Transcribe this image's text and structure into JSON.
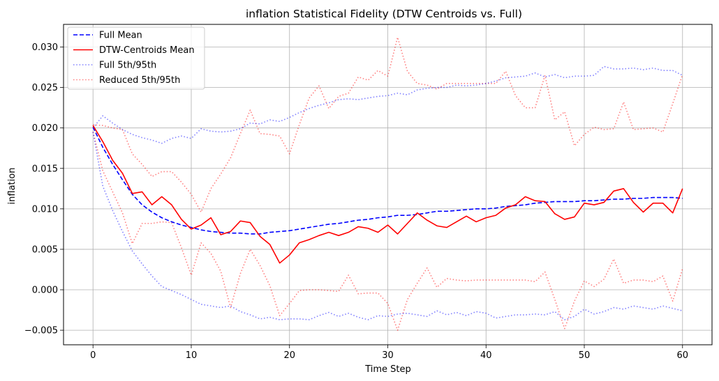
{
  "chart_data": {
    "type": "line",
    "title": "inflation Statistical Fidelity (DTW Centroids vs. Full)",
    "xlabel": "Time Step",
    "ylabel": "inflation",
    "xlim": [
      -3,
      63
    ],
    "ylim": [
      -0.0068,
      0.0328
    ],
    "xticks": [
      0,
      10,
      20,
      30,
      40,
      50,
      60
    ],
    "xtick_labels": [
      "0",
      "10",
      "20",
      "30",
      "40",
      "50",
      "60"
    ],
    "yticks": [
      -0.005,
      0.0,
      0.005,
      0.01,
      0.015,
      0.02,
      0.025,
      0.03
    ],
    "ytick_labels": [
      "−0.005",
      "0.000",
      "0.005",
      "0.010",
      "0.015",
      "0.020",
      "0.025",
      "0.030"
    ],
    "grid": true,
    "legend_position": "upper-left",
    "series": [
      {
        "name": "Full Mean",
        "color": "#0000ff",
        "style": "dashed",
        "alpha": 1.0,
        "x": [
          0,
          1,
          2,
          3,
          4,
          5,
          6,
          7,
          8,
          9,
          10,
          11,
          12,
          13,
          14,
          15,
          16,
          17,
          18,
          19,
          20,
          21,
          22,
          23,
          24,
          25,
          26,
          27,
          28,
          29,
          30,
          31,
          32,
          33,
          34,
          35,
          36,
          37,
          38,
          39,
          40,
          41,
          42,
          43,
          44,
          45,
          46,
          47,
          48,
          49,
          50,
          51,
          52,
          53,
          54,
          55,
          56,
          57,
          58,
          59,
          60
        ],
        "values": [
          0.0201,
          0.0176,
          0.0155,
          0.0136,
          0.0118,
          0.0105,
          0.0096,
          0.0089,
          0.0084,
          0.008,
          0.0077,
          0.0074,
          0.0072,
          0.0071,
          0.007,
          0.007,
          0.0069,
          0.0069,
          0.0071,
          0.0072,
          0.0073,
          0.0075,
          0.0077,
          0.0079,
          0.0081,
          0.0082,
          0.0084,
          0.0086,
          0.0087,
          0.0089,
          0.009,
          0.0092,
          0.0092,
          0.0093,
          0.0095,
          0.0097,
          0.0097,
          0.0098,
          0.0099,
          0.01,
          0.01,
          0.0101,
          0.0103,
          0.0104,
          0.0105,
          0.0107,
          0.0108,
          0.0109,
          0.0109,
          0.0109,
          0.011,
          0.011,
          0.0111,
          0.0112,
          0.0112,
          0.0113,
          0.0113,
          0.0114,
          0.0114,
          0.0114,
          0.0113
        ]
      },
      {
        "name": "DTW-Centroids Mean",
        "color": "#ff0000",
        "style": "solid",
        "alpha": 1.0,
        "x": [
          0,
          1,
          2,
          3,
          4,
          5,
          6,
          7,
          8,
          9,
          10,
          11,
          12,
          13,
          14,
          15,
          16,
          17,
          18,
          19,
          20,
          21,
          22,
          23,
          24,
          25,
          26,
          27,
          28,
          29,
          30,
          31,
          32,
          33,
          34,
          35,
          36,
          37,
          38,
          39,
          40,
          41,
          42,
          43,
          44,
          45,
          46,
          47,
          48,
          49,
          50,
          51,
          52,
          53,
          54,
          55,
          56,
          57,
          58,
          59,
          60
        ],
        "values": [
          0.0203,
          0.0183,
          0.016,
          0.0144,
          0.0119,
          0.0121,
          0.0105,
          0.0115,
          0.0105,
          0.0087,
          0.0075,
          0.008,
          0.0089,
          0.0068,
          0.0072,
          0.0085,
          0.0083,
          0.0066,
          0.0056,
          0.0033,
          0.0043,
          0.0058,
          0.0062,
          0.0067,
          0.0071,
          0.0067,
          0.0071,
          0.0078,
          0.0076,
          0.0071,
          0.008,
          0.0069,
          0.0082,
          0.0095,
          0.0086,
          0.0079,
          0.0077,
          0.0084,
          0.0091,
          0.0084,
          0.0089,
          0.0092,
          0.0101,
          0.0105,
          0.0115,
          0.011,
          0.0109,
          0.0094,
          0.0087,
          0.009,
          0.0107,
          0.0105,
          0.0108,
          0.0122,
          0.0125,
          0.0108,
          0.0096,
          0.0107,
          0.0107,
          0.0095,
          0.0125
        ]
      },
      {
        "name": "Full 5th/95th",
        "color": "#0000ff",
        "style": "dotted",
        "alpha": 0.5,
        "x": [
          0,
          1,
          2,
          3,
          4,
          5,
          6,
          7,
          8,
          9,
          10,
          11,
          12,
          13,
          14,
          15,
          16,
          17,
          18,
          19,
          20,
          21,
          22,
          23,
          24,
          25,
          26,
          27,
          28,
          29,
          30,
          31,
          32,
          33,
          34,
          35,
          36,
          37,
          38,
          39,
          40,
          41,
          42,
          43,
          44,
          45,
          46,
          47,
          48,
          49,
          50,
          51,
          52,
          53,
          54,
          55,
          56,
          57,
          58,
          59,
          60
        ],
        "values": [
          0.02,
          0.0215,
          0.0206,
          0.0198,
          0.0192,
          0.0188,
          0.0185,
          0.0181,
          0.0187,
          0.019,
          0.0187,
          0.0199,
          0.0196,
          0.0195,
          0.0196,
          0.0199,
          0.0206,
          0.0205,
          0.021,
          0.0208,
          0.0213,
          0.0219,
          0.0224,
          0.0228,
          0.0231,
          0.0235,
          0.0236,
          0.0235,
          0.0237,
          0.0239,
          0.024,
          0.0243,
          0.0241,
          0.0247,
          0.0249,
          0.025,
          0.025,
          0.0253,
          0.0252,
          0.0253,
          0.0255,
          0.0258,
          0.0262,
          0.0263,
          0.0264,
          0.0268,
          0.0263,
          0.0266,
          0.0262,
          0.0264,
          0.0264,
          0.0265,
          0.0276,
          0.0273,
          0.0273,
          0.0274,
          0.0272,
          0.0274,
          0.0271,
          0.0271,
          0.0265
        ],
        "lower": [
          0.0195,
          0.0128,
          0.0098,
          0.0072,
          0.0048,
          0.0032,
          0.0017,
          0.0004,
          -0.0001,
          -0.0006,
          -0.0012,
          -0.0018,
          -0.002,
          -0.0022,
          -0.002,
          -0.0027,
          -0.0031,
          -0.0036,
          -0.0034,
          -0.0037,
          -0.0036,
          -0.0036,
          -0.0037,
          -0.0032,
          -0.0028,
          -0.0033,
          -0.0029,
          -0.0034,
          -0.0037,
          -0.0032,
          -0.0033,
          -0.003,
          -0.0029,
          -0.0031,
          -0.0033,
          -0.0026,
          -0.0031,
          -0.0028,
          -0.0032,
          -0.0027,
          -0.0029,
          -0.0035,
          -0.0033,
          -0.0031,
          -0.0031,
          -0.003,
          -0.0031,
          -0.0027,
          -0.0037,
          -0.0033,
          -0.0024,
          -0.003,
          -0.0027,
          -0.0022,
          -0.0024,
          -0.002,
          -0.0022,
          -0.0024,
          -0.002,
          -0.0023,
          -0.0026
        ]
      },
      {
        "name": "Reduced 5th/95th",
        "color": "#ff0000",
        "style": "dotted",
        "alpha": 0.5,
        "x": [
          0,
          1,
          2,
          3,
          4,
          5,
          6,
          7,
          8,
          9,
          10,
          11,
          12,
          13,
          14,
          15,
          16,
          17,
          18,
          19,
          20,
          21,
          22,
          23,
          24,
          25,
          26,
          27,
          28,
          29,
          30,
          31,
          32,
          33,
          34,
          35,
          36,
          37,
          38,
          39,
          40,
          41,
          42,
          43,
          44,
          45,
          46,
          47,
          48,
          49,
          50,
          51,
          52,
          53,
          54,
          55,
          56,
          57,
          58,
          59,
          60
        ],
        "values": [
          0.0204,
          0.0203,
          0.02,
          0.0198,
          0.0168,
          0.0155,
          0.014,
          0.0146,
          0.0146,
          0.0133,
          0.0118,
          0.0096,
          0.0125,
          0.0143,
          0.0163,
          0.0193,
          0.0222,
          0.0193,
          0.0192,
          0.019,
          0.0168,
          0.0204,
          0.0237,
          0.0252,
          0.0224,
          0.0239,
          0.0243,
          0.0263,
          0.0259,
          0.0271,
          0.0264,
          0.0312,
          0.027,
          0.0255,
          0.0253,
          0.0248,
          0.0255,
          0.0255,
          0.0255,
          0.0255,
          0.0255,
          0.0255,
          0.027,
          0.024,
          0.0225,
          0.0225,
          0.0265,
          0.021,
          0.022,
          0.0178,
          0.0192,
          0.0201,
          0.0198,
          0.0199,
          0.0232,
          0.0198,
          0.0199,
          0.02,
          0.0195,
          0.023,
          0.0266
        ],
        "lower": [
          0.0195,
          0.0147,
          0.0121,
          0.0095,
          0.0057,
          0.0082,
          0.0082,
          0.0084,
          0.0083,
          0.0052,
          0.0018,
          0.0058,
          0.0045,
          0.0023,
          -0.0022,
          0.002,
          0.005,
          0.003,
          0.0005,
          -0.0032,
          -0.0017,
          -0.0001,
          0.0,
          0.0,
          -0.0001,
          -0.0002,
          0.0018,
          -0.0005,
          -0.0004,
          -0.0004,
          -0.0017,
          -0.005,
          -0.0012,
          0.0008,
          0.0027,
          0.0003,
          0.0014,
          0.0012,
          0.0011,
          0.0012,
          0.0012,
          0.0012,
          0.0012,
          0.0012,
          0.0012,
          0.001,
          0.0022,
          -0.0012,
          -0.0048,
          -0.0014,
          0.0011,
          0.0004,
          0.0013,
          0.0038,
          0.0008,
          0.0012,
          0.0012,
          0.001,
          0.0017,
          -0.0014,
          0.0026
        ]
      }
    ]
  }
}
